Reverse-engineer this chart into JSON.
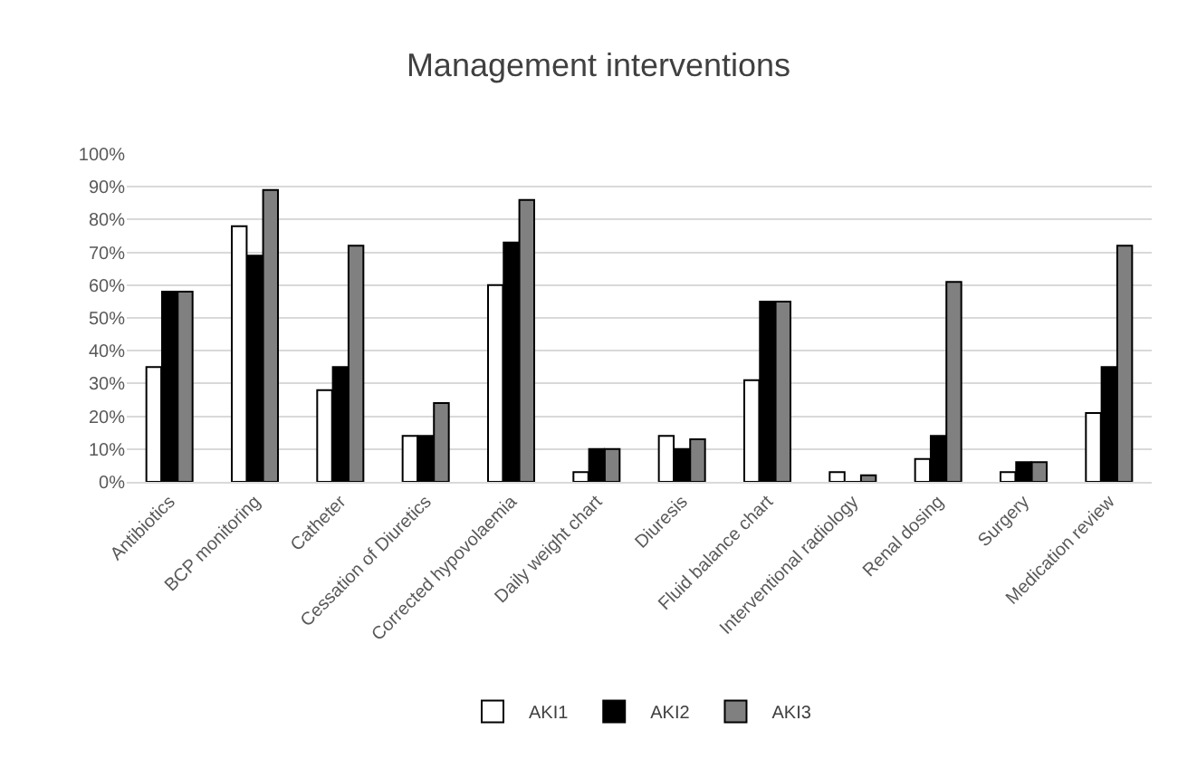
{
  "chart_data": {
    "type": "bar",
    "title": "Management interventions",
    "categories": [
      "Antibiotics",
      "BCP monitoring",
      "Catheter",
      "Cessation of Diuretics",
      "Corrected hypovolaemia",
      "Daily weight chart",
      "Diuresis",
      "Fluid balance chart",
      "Interventional radiology",
      "Renal dosing",
      "Surgery",
      "Medication review"
    ],
    "series": [
      {
        "name": "AKI1",
        "color": "#ffffff",
        "values": [
          35,
          78,
          28,
          14,
          60,
          3,
          14,
          31,
          3,
          7,
          3,
          21
        ]
      },
      {
        "name": "AKI2",
        "color": "#000000",
        "values": [
          58,
          69,
          35,
          14,
          73,
          10,
          10,
          55,
          0,
          14,
          6,
          35
        ]
      },
      {
        "name": "AKI3",
        "color": "#808080",
        "values": [
          58,
          89,
          72,
          24,
          86,
          10,
          13,
          55,
          2,
          61,
          6,
          72
        ]
      }
    ],
    "ylim": [
      0,
      100
    ],
    "yticks": [
      {
        "value": 0,
        "label": "0%"
      },
      {
        "value": 10,
        "label": "10%"
      },
      {
        "value": 20,
        "label": "20%"
      },
      {
        "value": 30,
        "label": "30%"
      },
      {
        "value": 40,
        "label": "40%"
      },
      {
        "value": 50,
        "label": "50%"
      },
      {
        "value": 60,
        "label": "60%"
      },
      {
        "value": 70,
        "label": "70%"
      },
      {
        "value": 80,
        "label": "80%"
      },
      {
        "value": 90,
        "label": "90%"
      },
      {
        "value": 100,
        "label": "100%"
      }
    ],
    "grid": "y",
    "legend": "bottom"
  }
}
